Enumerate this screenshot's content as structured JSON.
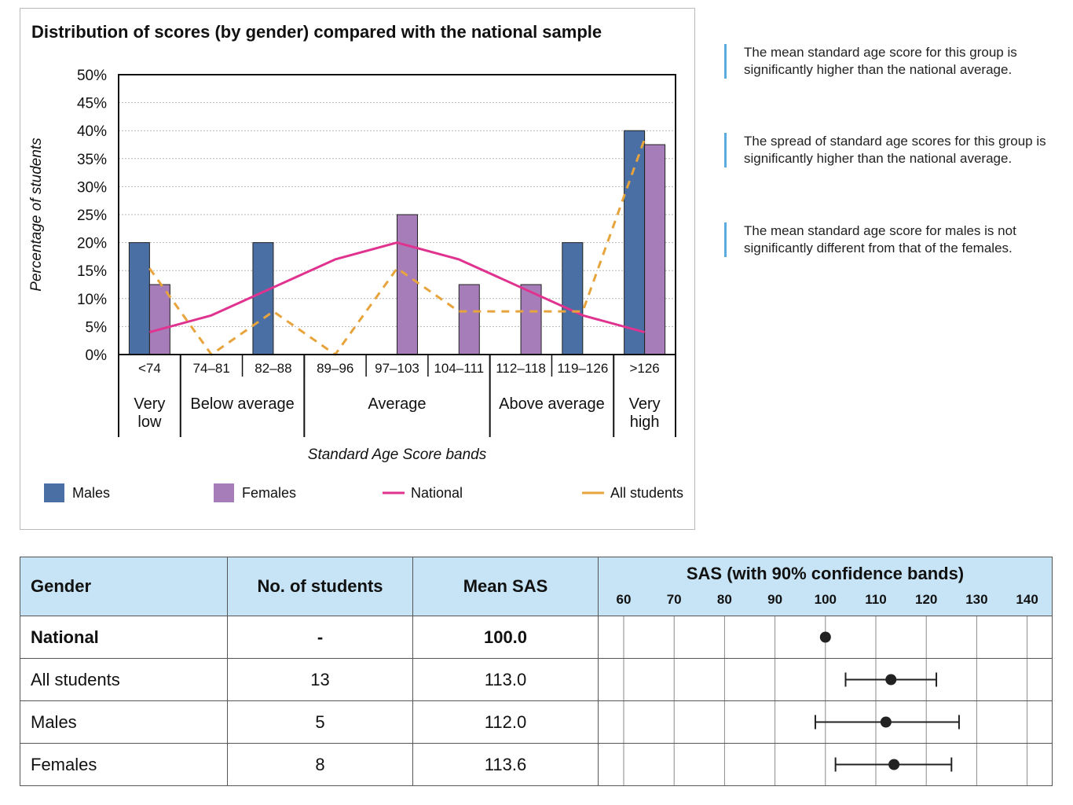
{
  "chart_data": [
    {
      "type": "bar",
      "title": "Distribution of scores (by gender) compared with the national sample",
      "ylabel": "Percentage of students",
      "xlabel": "Standard Age Score bands",
      "ylim": [
        0,
        50
      ],
      "yticks": [
        "0%",
        "5%",
        "10%",
        "15%",
        "20%",
        "25%",
        "30%",
        "35%",
        "40%",
        "45%",
        "50%"
      ],
      "categories": [
        "<74",
        "74–81",
        "82–88",
        "89–96",
        "97–103",
        "104–111",
        "112–118",
        "119–126",
        ">126"
      ],
      "groups": [
        {
          "label": "Very low",
          "lines": [
            "Very",
            "low"
          ],
          "span": [
            0,
            1
          ]
        },
        {
          "label": "Below average",
          "lines": [
            "Below average"
          ],
          "span": [
            1,
            3
          ]
        },
        {
          "label": "Average",
          "lines": [
            "Average"
          ],
          "span": [
            3,
            6
          ]
        },
        {
          "label": "Above average",
          "lines": [
            "Above average"
          ],
          "span": [
            6,
            8
          ]
        },
        {
          "label": "Very high",
          "lines": [
            "Very",
            "high"
          ],
          "span": [
            8,
            9
          ]
        }
      ],
      "series": [
        {
          "name": "Males",
          "type": "bar",
          "color": "#4a6fa5",
          "values": [
            20,
            0,
            20,
            0,
            0,
            0,
            0,
            20,
            40
          ]
        },
        {
          "name": "Females",
          "type": "bar",
          "color": "#a67db8",
          "values": [
            12.5,
            0,
            0,
            0,
            25,
            12.5,
            12.5,
            0,
            37.5
          ]
        },
        {
          "name": "National",
          "type": "line",
          "color": "#e0338f",
          "values": [
            4,
            7,
            12,
            17,
            20,
            17,
            12,
            7,
            4
          ]
        },
        {
          "name": "All students",
          "type": "dashed-line",
          "color": "#e8a43c",
          "values": [
            15.4,
            0,
            7.7,
            0,
            15.4,
            7.7,
            7.7,
            7.7,
            38.5
          ]
        }
      ],
      "grid": true,
      "legend": "bottom"
    },
    {
      "type": "table",
      "title": "SAS (with 90% confidence bands)",
      "columns": [
        "Gender",
        "No. of students",
        "Mean SAS"
      ],
      "axis_ticks": [
        60,
        70,
        80,
        90,
        100,
        110,
        120,
        130,
        140
      ],
      "rows": [
        {
          "gender": "National",
          "count": "-",
          "mean": "100.0",
          "mean_value": 100,
          "ci": [
            100,
            100
          ],
          "bold": true
        },
        {
          "gender": "All students",
          "count": "13",
          "mean": "113.0",
          "mean_value": 113,
          "ci": [
            104,
            122
          ],
          "bold": false
        },
        {
          "gender": "Males",
          "count": "5",
          "mean": "112.0",
          "mean_value": 112,
          "ci": [
            98,
            126.5
          ],
          "bold": false
        },
        {
          "gender": "Females",
          "count": "8",
          "mean": "113.6",
          "mean_value": 113.6,
          "ci": [
            102,
            125
          ],
          "bold": false
        }
      ]
    }
  ],
  "notes": [
    "The mean standard age score for this group is significantly higher than the national average.",
    "The spread of standard age scores for this group is significantly higher than the national average.",
    "The mean standard age score for males is not significantly different from that of the females."
  ],
  "colors": {
    "note_bar": "#5aace0",
    "table_header": "#c7e4f6"
  }
}
